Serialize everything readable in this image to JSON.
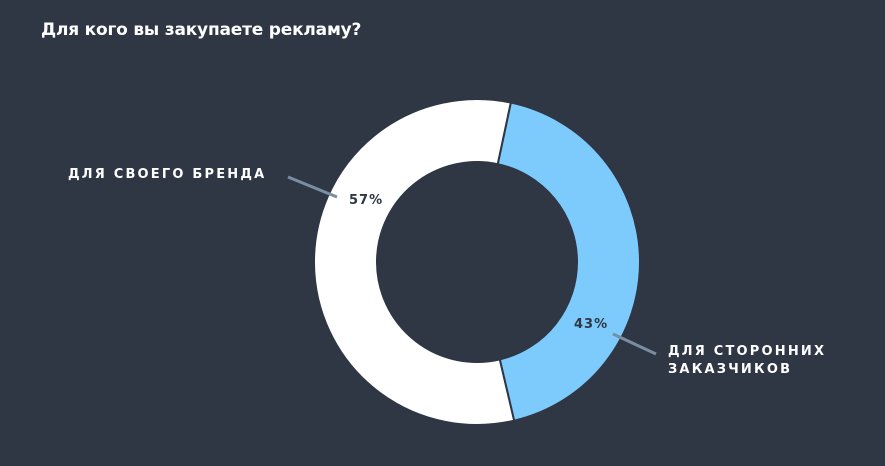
{
  "title": "Для кого вы закупаете рекламу?",
  "colors": {
    "background": "#2f3644",
    "slice_own": "#ffffff",
    "slice_clients": "#7dcbfd",
    "leader_line": "#7a8ea3"
  },
  "chart_data": {
    "type": "pie",
    "title": "Для кого вы закупаете рекламу?",
    "donut": true,
    "slices": [
      {
        "label": "ДЛЯ СВОЕГО БРЕНДА",
        "label_lines": [
          "ДЛЯ СВОЕГО БРЕНДА"
        ],
        "value": 57,
        "value_label": "57%",
        "color": "#ffffff"
      },
      {
        "label": "ДЛЯ СТОРОННИХ ЗАКАЗЧИКОВ",
        "label_lines": [
          "ДЛЯ СТОРОННИХ",
          "ЗАКАЗЧИКОВ"
        ],
        "value": 43,
        "value_label": "43%",
        "color": "#7dcbfd"
      }
    ]
  }
}
